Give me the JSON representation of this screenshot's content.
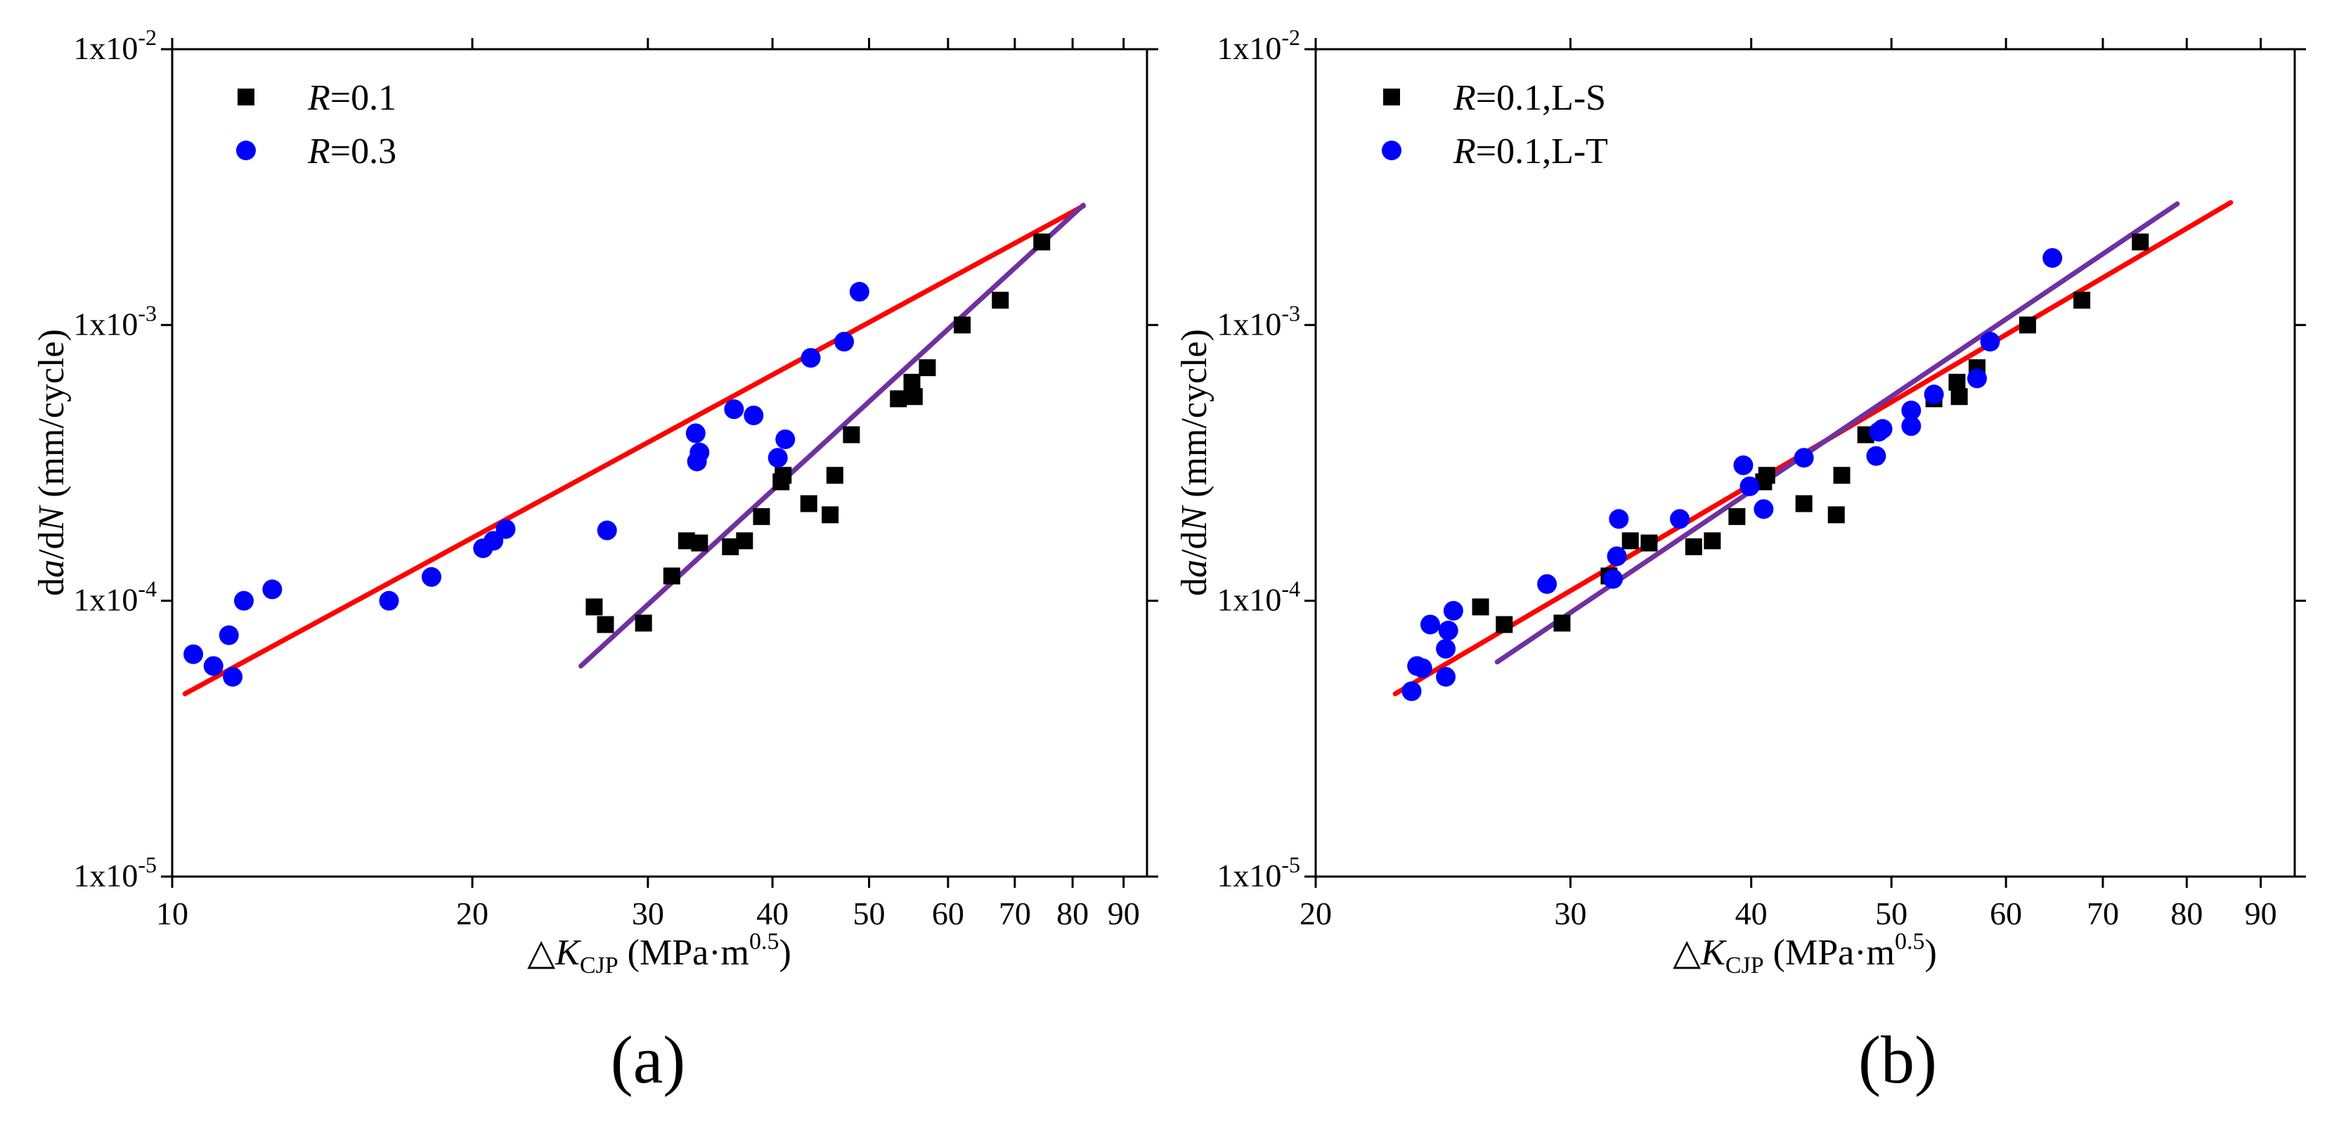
{
  "chart_data": [
    {
      "type": "scatter",
      "panel_label": "(a)",
      "xlabel": "△K_CJP (MPa·m^0.5)",
      "ylabel": "da/dN (mm/cycle)",
      "xscale": "log",
      "yscale": "log",
      "xlim": [
        10,
        95
      ],
      "ylim": [
        1e-05,
        0.01
      ],
      "x_ticks": [
        10,
        20,
        30,
        40,
        50,
        60,
        70,
        80,
        90
      ],
      "x_tick_labels": [
        "10",
        "20",
        "30",
        "40",
        "50",
        "60",
        "70",
        "80",
        "90"
      ],
      "y_ticks": [
        1e-05,
        0.0001,
        0.001,
        0.01
      ],
      "y_tick_labels": [
        [
          "1x10",
          "-5"
        ],
        [
          "1x10",
          "-4"
        ],
        [
          "1x10",
          "-3"
        ],
        [
          "1x10",
          "-2"
        ]
      ],
      "legend_position": "top-left",
      "series": [
        {
          "name": "R=0.1",
          "label_italic": "R",
          "label_rest": "=0.1",
          "marker": "square",
          "color": "#000000",
          "points": [
            [
              26.5,
              9.5e-05
            ],
            [
              27.2,
              8.2e-05
            ],
            [
              29.7,
              8.3e-05
            ],
            [
              31.7,
              0.000123
            ],
            [
              32.8,
              0.000165
            ],
            [
              33.8,
              0.000162
            ],
            [
              36.3,
              0.000157
            ],
            [
              37.5,
              0.000165
            ],
            [
              39,
              0.000202
            ],
            [
              40.8,
              0.00027
            ],
            [
              41,
              0.000285
            ],
            [
              43.5,
              0.000225
            ],
            [
              45.7,
              0.000205
            ],
            [
              46.2,
              0.000285
            ],
            [
              48,
              0.0004
            ],
            [
              53.5,
              0.00054
            ],
            [
              55.2,
              0.00062
            ],
            [
              55.5,
              0.00055
            ],
            [
              57.2,
              0.0007
            ],
            [
              62,
              0.001
            ],
            [
              67.7,
              0.00123
            ],
            [
              74.5,
              0.002
            ]
          ]
        },
        {
          "name": "R=0.3",
          "label_italic": "R",
          "label_rest": "=0.3",
          "marker": "circle",
          "color": "#0000ff",
          "points": [
            [
              10.5,
              6.4e-05
            ],
            [
              11,
              5.8e-05
            ],
            [
              11.4,
              7.5e-05
            ],
            [
              11.5,
              5.3e-05
            ],
            [
              11.8,
              0.0001
            ],
            [
              12.6,
              0.00011
            ],
            [
              16.5,
              0.0001
            ],
            [
              18.2,
              0.000122
            ],
            [
              20.5,
              0.000155
            ],
            [
              21,
              0.000165
            ],
            [
              21.6,
              0.000182
            ],
            [
              27.3,
              0.00018
            ],
            [
              33.5,
              0.000405
            ],
            [
              33.6,
              0.00032
            ],
            [
              33.8,
              0.000345
            ],
            [
              36.6,
              0.000495
            ],
            [
              38.3,
              0.00047
            ],
            [
              40.5,
              0.00033
            ],
            [
              41.2,
              0.000385
            ],
            [
              43.7,
              0.00076
            ],
            [
              47.2,
              0.00087
            ],
            [
              48.9,
              0.00132
            ]
          ]
        }
      ],
      "fit_lines": [
        {
          "color": "#ff0000",
          "from": [
            10.3,
            4.6e-05
          ],
          "to": [
            82,
            0.0027
          ]
        },
        {
          "color": "#7030a0",
          "from": [
            25.7,
            5.8e-05
          ],
          "to": [
            82,
            0.00272
          ]
        }
      ]
    },
    {
      "type": "scatter",
      "panel_label": "(b)",
      "xlabel": "△K_CJP (MPa·m^0.5)",
      "ylabel": "da/dN (mm/cycle)",
      "xscale": "log",
      "yscale": "log",
      "xlim": [
        20,
        95
      ],
      "ylim": [
        1e-05,
        0.01
      ],
      "x_ticks": [
        20,
        30,
        40,
        50,
        60,
        70,
        80,
        90
      ],
      "x_tick_labels": [
        "20",
        "30",
        "40",
        "50",
        "60",
        "70",
        "80",
        "90"
      ],
      "y_ticks": [
        1e-05,
        0.0001,
        0.001,
        0.01
      ],
      "y_tick_labels": [
        [
          "1x10",
          "-5"
        ],
        [
          "1x10",
          "-4"
        ],
        [
          "1x10",
          "-3"
        ],
        [
          "1x10",
          "-2"
        ]
      ],
      "legend_position": "top-left",
      "series": [
        {
          "name": "R=0.1,L-S",
          "label_italic": "R",
          "label_rest": "=0.1,L-S",
          "marker": "square",
          "color": "#000000",
          "points": [
            [
              26,
              9.5e-05
            ],
            [
              27,
              8.2e-05
            ],
            [
              29.6,
              8.3e-05
            ],
            [
              31.9,
              0.000123
            ],
            [
              33,
              0.000165
            ],
            [
              34,
              0.000162
            ],
            [
              36.5,
              0.000157
            ],
            [
              37.6,
              0.000165
            ],
            [
              39.1,
              0.000202
            ],
            [
              40.8,
              0.00027
            ],
            [
              41,
              0.000285
            ],
            [
              43.5,
              0.000225
            ],
            [
              45.8,
              0.000205
            ],
            [
              46.2,
              0.000285
            ],
            [
              48,
              0.0004
            ],
            [
              53.5,
              0.00054
            ],
            [
              55.5,
              0.00062
            ],
            [
              55.7,
              0.00055
            ],
            [
              57.3,
              0.0007
            ],
            [
              62.1,
              0.001
            ],
            [
              67.7,
              0.00123
            ],
            [
              74.3,
              0.002
            ]
          ]
        },
        {
          "name": "R=0.1,L-T",
          "label_italic": "R",
          "label_rest": "=0.1,L-T",
          "marker": "circle",
          "color": "#0000ff",
          "points": [
            [
              23.3,
              4.7e-05
            ],
            [
              23.5,
              5.8e-05
            ],
            [
              23.7,
              5.7e-05
            ],
            [
              24,
              8.2e-05
            ],
            [
              24.6,
              6.7e-05
            ],
            [
              24.6,
              5.3e-05
            ],
            [
              24.7,
              7.8e-05
            ],
            [
              24.9,
              9.2e-05
            ],
            [
              28.9,
              0.000115
            ],
            [
              32.1,
              0.00012
            ],
            [
              32.3,
              0.000145
            ],
            [
              32.4,
              0.000198
            ],
            [
              35.7,
              0.000198
            ],
            [
              39.5,
              0.00031
            ],
            [
              39.9,
              0.00026
            ],
            [
              40.8,
              0.000215
            ],
            [
              43.5,
              0.00033
            ],
            [
              48.8,
              0.000335
            ],
            [
              49,
              0.00041
            ],
            [
              49.3,
              0.00042
            ],
            [
              51.6,
              0.00043
            ],
            [
              51.6,
              0.00049
            ],
            [
              53.5,
              0.00056
            ],
            [
              57.3,
              0.00064
            ],
            [
              58.5,
              0.00087
            ],
            [
              64.6,
              0.00175
            ]
          ]
        }
      ],
      "fit_lines": [
        {
          "color": "#ff0000",
          "from": [
            22.7,
            4.6e-05
          ],
          "to": [
            85.8,
            0.00278
          ]
        },
        {
          "color": "#7030a0",
          "from": [
            26.7,
            6e-05
          ],
          "to": [
            78.8,
            0.00275
          ]
        }
      ]
    }
  ]
}
